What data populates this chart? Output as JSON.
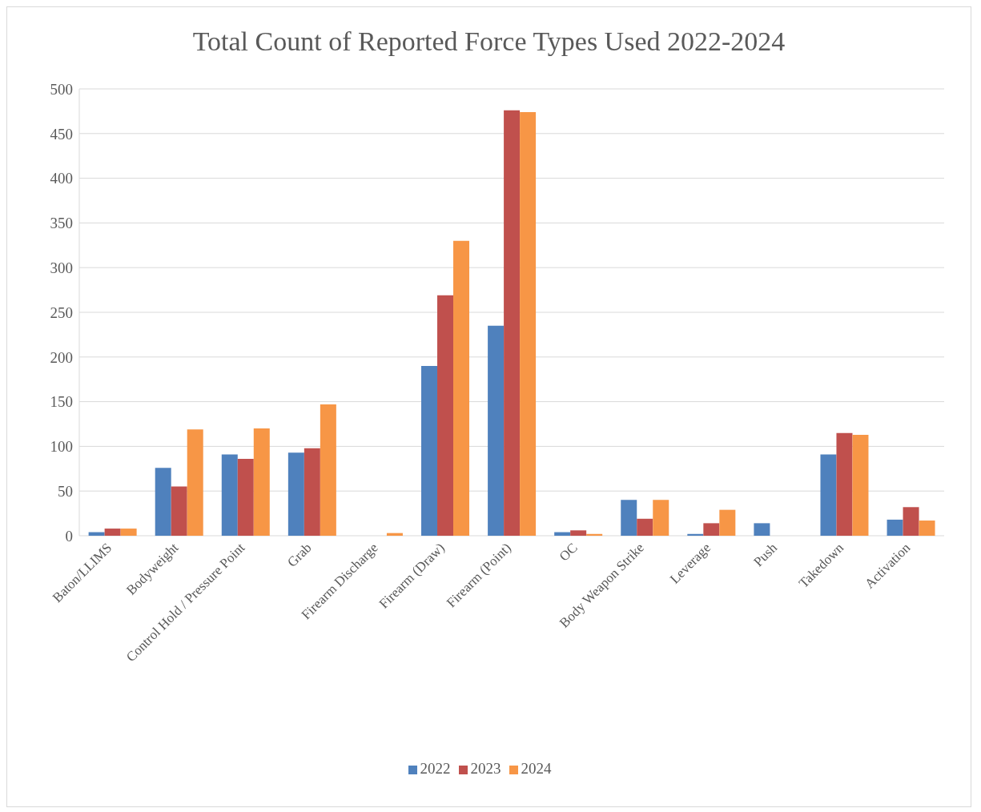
{
  "chart_data": {
    "type": "bar",
    "title": "Total Count of Reported Force Types Used 2022-2024",
    "categories": [
      "Baton/LLIMS",
      "Bodyweight",
      "Control Hold / Pressure Point",
      "Grab",
      "Firearm Discharge",
      "Firearm (Draw)",
      "Firearm (Point)",
      "OC",
      "Body Weapon Strike",
      "Leverage",
      "Push",
      "Takedown",
      "Activation"
    ],
    "series": [
      {
        "name": "2022",
        "color": "#4f81bd",
        "values": [
          4,
          76,
          91,
          93,
          0,
          190,
          235,
          4,
          40,
          2,
          14,
          91,
          18
        ]
      },
      {
        "name": "2023",
        "color": "#c0504d",
        "values": [
          8,
          55,
          86,
          98,
          0,
          269,
          476,
          6,
          19,
          14,
          0,
          115,
          32
        ]
      },
      {
        "name": "2024",
        "color": "#f79646",
        "values": [
          8,
          119,
          120,
          147,
          3,
          330,
          474,
          2,
          40,
          29,
          0,
          113,
          17
        ]
      }
    ],
    "ylim": [
      0,
      500
    ],
    "yticks": [
      0,
      50,
      100,
      150,
      200,
      250,
      300,
      350,
      400,
      450,
      500
    ],
    "grid": "y",
    "legend": "bottom"
  }
}
